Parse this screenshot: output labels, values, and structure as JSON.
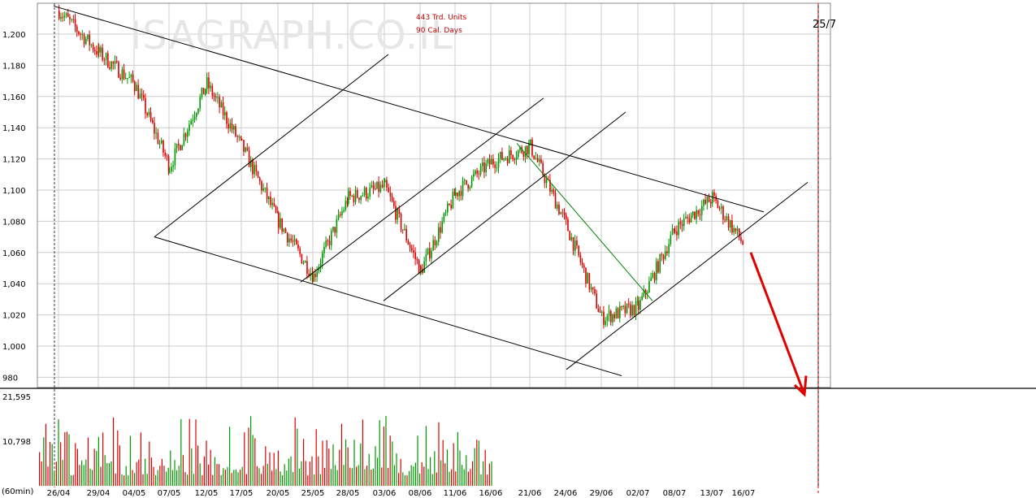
{
  "header": {
    "watermark": "ISAGRAPH.CO.IL",
    "units_label": "443 Trd. Units",
    "days_label": "90 Cal. Days",
    "date_marker": "25/7",
    "interval_label": "(60min)"
  },
  "colors": {
    "up": "#009a00",
    "down": "#e00000",
    "trendline": "#000000",
    "forecast_arrow": "#e00000",
    "green_line": "#008000",
    "grid": "#cccccc"
  },
  "chart_data": [
    {
      "type": "candlestick",
      "title": "",
      "price_axis_ticks": [
        "1,200",
        "1,180",
        "1,160",
        "1,140",
        "1,120",
        "1,100",
        "1,080",
        "1,060",
        "1,040",
        "1,020",
        "1,000",
        "980"
      ],
      "ylim": [
        972,
        1218
      ],
      "date_ticks": [
        "26/04",
        "29/04",
        "04/05",
        "07/05",
        "12/05",
        "17/05",
        "20/05",
        "25/05",
        "28/05",
        "03/06",
        "08/06",
        "11/06",
        "16/06",
        "21/06",
        "24/06",
        "29/06",
        "02/07",
        "08/07",
        "13/07",
        "16/07"
      ],
      "grid": true,
      "anchor_closes": [
        {
          "date": "26/04",
          "value": 1215
        },
        {
          "date": "29/04",
          "value": 1188
        },
        {
          "date": "04/05",
          "value": 1168
        },
        {
          "date": "07/05",
          "value": 1115
        },
        {
          "date": "12/05",
          "value": 1168
        },
        {
          "date": "17/05",
          "value": 1128
        },
        {
          "date": "20/05",
          "value": 1080
        },
        {
          "date": "25/05",
          "value": 1045
        },
        {
          "date": "28/05",
          "value": 1095
        },
        {
          "date": "03/06",
          "value": 1102
        },
        {
          "date": "08/06",
          "value": 1048
        },
        {
          "date": "11/06",
          "value": 1098
        },
        {
          "date": "16/06",
          "value": 1118
        },
        {
          "date": "21/06",
          "value": 1128
        },
        {
          "date": "24/06",
          "value": 1078
        },
        {
          "date": "29/06",
          "value": 1018
        },
        {
          "date": "02/07",
          "value": 1025
        },
        {
          "date": "08/07",
          "value": 1075
        },
        {
          "date": "13/07",
          "value": 1095
        },
        {
          "date": "16/07",
          "value": 1065
        }
      ]
    },
    {
      "type": "bar",
      "title": "",
      "volume_axis_ticks": [
        "21,595",
        "10,798"
      ],
      "ylim": [
        0,
        23000
      ]
    }
  ]
}
